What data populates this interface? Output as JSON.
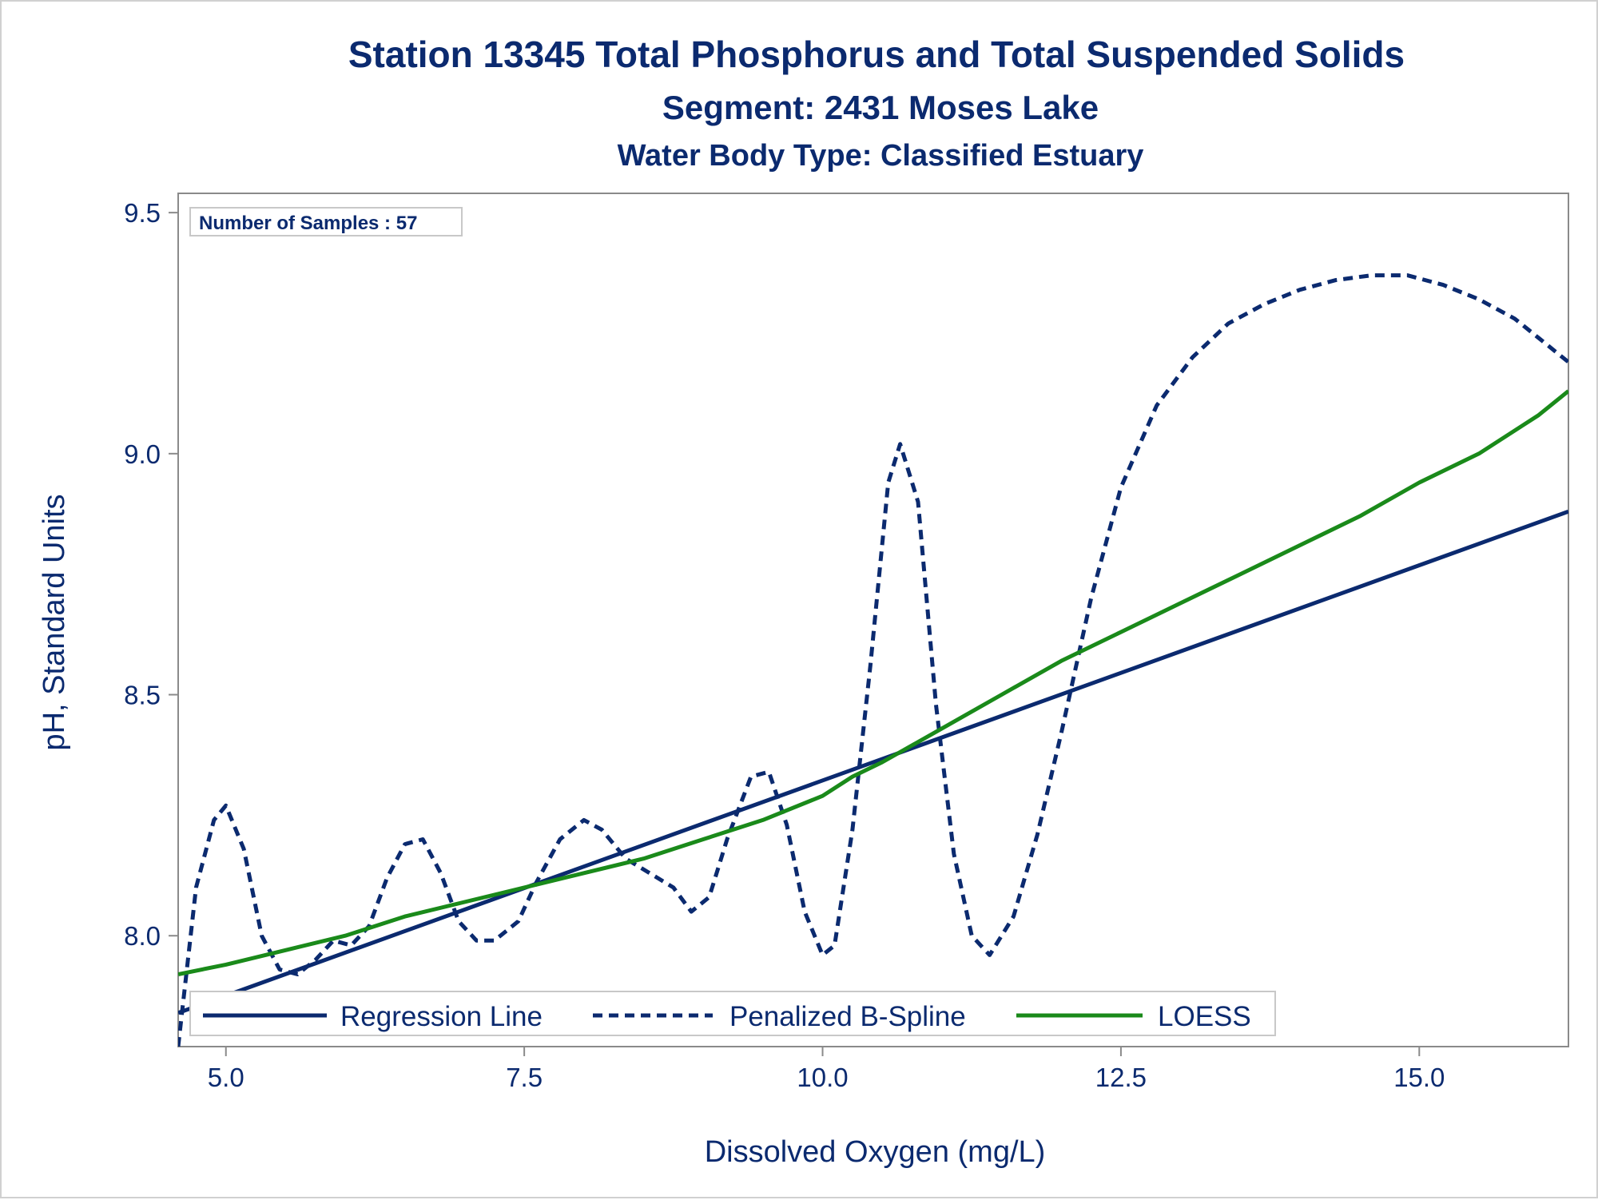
{
  "chart_data": {
    "type": "line",
    "title": "Station 13345  Total Phosphorus and Total Suspended Solids",
    "subtitle": "Segment: 2431  Moses Lake",
    "subtitle2": "Water Body Type: Classified Estuary",
    "xlabel": "Dissolved Oxygen (mg/L)",
    "ylabel": "pH, Standard Units",
    "xlim": [
      4.6,
      16.25
    ],
    "ylim": [
      7.77,
      9.54
    ],
    "xticks": [
      "5.0",
      "7.5",
      "10.0",
      "12.5",
      "15.0"
    ],
    "xtick_values": [
      5.0,
      7.5,
      10.0,
      12.5,
      15.0
    ],
    "yticks": [
      "8.0",
      "8.5",
      "9.0",
      "9.5"
    ],
    "ytick_values": [
      8.0,
      8.5,
      9.0,
      9.5
    ],
    "annotation": "Number of Samples : 57",
    "legend_position": "bottom-left",
    "series": [
      {
        "name": "Regression Line",
        "style": "solid",
        "color": "#0b2a6f",
        "x": [
          4.6,
          16.25
        ],
        "y": [
          7.84,
          8.88
        ]
      },
      {
        "name": "Penalized B-Spline",
        "style": "dashed",
        "color": "#0b2a6f",
        "x": [
          4.6,
          4.75,
          4.9,
          5.0,
          5.15,
          5.3,
          5.45,
          5.6,
          5.75,
          5.9,
          6.05,
          6.2,
          6.35,
          6.5,
          6.65,
          6.8,
          6.95,
          7.1,
          7.25,
          7.45,
          7.6,
          7.8,
          8.0,
          8.15,
          8.35,
          8.55,
          8.75,
          8.9,
          9.05,
          9.2,
          9.4,
          9.55,
          9.7,
          9.85,
          10.0,
          10.1,
          10.25,
          10.4,
          10.55,
          10.65,
          10.8,
          10.95,
          11.1,
          11.25,
          11.4,
          11.6,
          11.8,
          12.0,
          12.25,
          12.5,
          12.8,
          13.1,
          13.4,
          13.7,
          14.0,
          14.3,
          14.6,
          14.9,
          15.2,
          15.5,
          15.8,
          16.0,
          16.25
        ],
        "y": [
          7.77,
          8.1,
          8.24,
          8.27,
          8.18,
          8.0,
          7.93,
          7.92,
          7.95,
          7.99,
          7.98,
          8.02,
          8.12,
          8.19,
          8.2,
          8.13,
          8.03,
          7.99,
          7.99,
          8.03,
          8.11,
          8.2,
          8.24,
          8.22,
          8.16,
          8.13,
          8.1,
          8.05,
          8.08,
          8.2,
          8.33,
          8.34,
          8.23,
          8.05,
          7.96,
          7.98,
          8.22,
          8.56,
          8.94,
          9.02,
          8.9,
          8.48,
          8.17,
          8.0,
          7.96,
          8.04,
          8.21,
          8.42,
          8.7,
          8.93,
          9.1,
          9.2,
          9.27,
          9.31,
          9.34,
          9.36,
          9.37,
          9.37,
          9.35,
          9.32,
          9.28,
          9.24,
          9.19
        ]
      },
      {
        "name": "LOESS",
        "style": "solid",
        "color": "#1a8a1a",
        "x": [
          4.6,
          5.0,
          5.5,
          6.0,
          6.5,
          7.0,
          7.5,
          8.0,
          8.5,
          9.0,
          9.5,
          10.0,
          10.25,
          10.5,
          11.0,
          11.5,
          12.0,
          12.5,
          13.0,
          13.5,
          14.0,
          14.5,
          15.0,
          15.5,
          16.0,
          16.25
        ],
        "y": [
          7.92,
          7.94,
          7.97,
          8.0,
          8.04,
          8.07,
          8.1,
          8.13,
          8.16,
          8.2,
          8.24,
          8.29,
          8.33,
          8.36,
          8.43,
          8.5,
          8.57,
          8.63,
          8.69,
          8.75,
          8.81,
          8.87,
          8.94,
          9.0,
          9.08,
          9.13
        ]
      }
    ]
  }
}
